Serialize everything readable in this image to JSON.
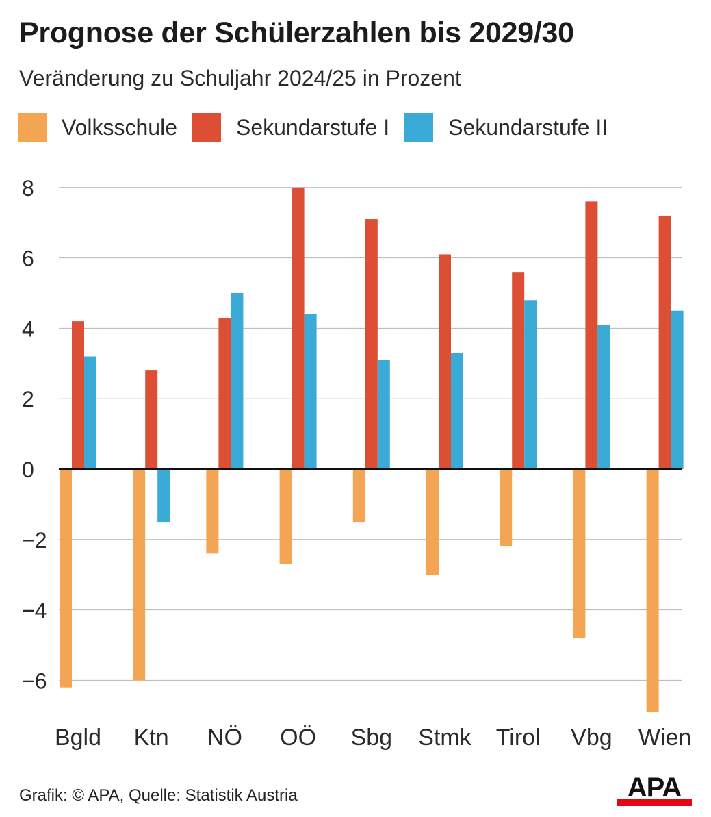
{
  "header": {
    "title": "Prognose der Schülerzahlen bis 2029/30",
    "subtitle": "Veränderung zu Schuljahr 2024/25 in Prozent"
  },
  "legend": [
    {
      "label": "Volksschule",
      "color": "#f4a553"
    },
    {
      "label": "Sekundarstufe I",
      "color": "#dc4f35"
    },
    {
      "label": "Sekundarstufe II",
      "color": "#3aabd6"
    }
  ],
  "footer": {
    "source": "Grafik: © APA, Quelle: Statistik Austria",
    "logo_text": "APA",
    "logo_color": "#e30613"
  },
  "chart_data": {
    "type": "bar",
    "title": "Prognose der Schülerzahlen bis 2029/30",
    "subtitle": "Veränderung zu Schuljahr 2024/25 in Prozent",
    "xlabel": "",
    "ylabel": "",
    "categories": [
      "Bgld",
      "Ktn",
      "NÖ",
      "OÖ",
      "Sbg",
      "Stmk",
      "Tirol",
      "Vbg",
      "Wien"
    ],
    "series": [
      {
        "name": "Volksschule",
        "color": "#f4a553",
        "values": [
          -6.2,
          -6.0,
          -2.4,
          -2.7,
          -1.5,
          -3.0,
          -2.2,
          -4.8,
          -6.9
        ]
      },
      {
        "name": "Sekundarstufe I",
        "color": "#dc4f35",
        "values": [
          4.2,
          2.8,
          4.3,
          8.0,
          7.1,
          6.1,
          5.6,
          7.6,
          7.2
        ]
      },
      {
        "name": "Sekundarstufe II",
        "color": "#3aabd6",
        "values": [
          3.2,
          -1.5,
          5.0,
          4.4,
          3.1,
          3.3,
          4.8,
          4.1,
          4.5
        ]
      }
    ],
    "ylim": [
      -7,
      8
    ],
    "yticks": [
      8,
      6,
      4,
      2,
      0,
      -2,
      -4,
      -6
    ],
    "ytick_labels": [
      "8",
      "6",
      "4",
      "2",
      "0",
      "−2",
      "−4",
      "−6"
    ],
    "grid": true,
    "legend_position": "top"
  }
}
